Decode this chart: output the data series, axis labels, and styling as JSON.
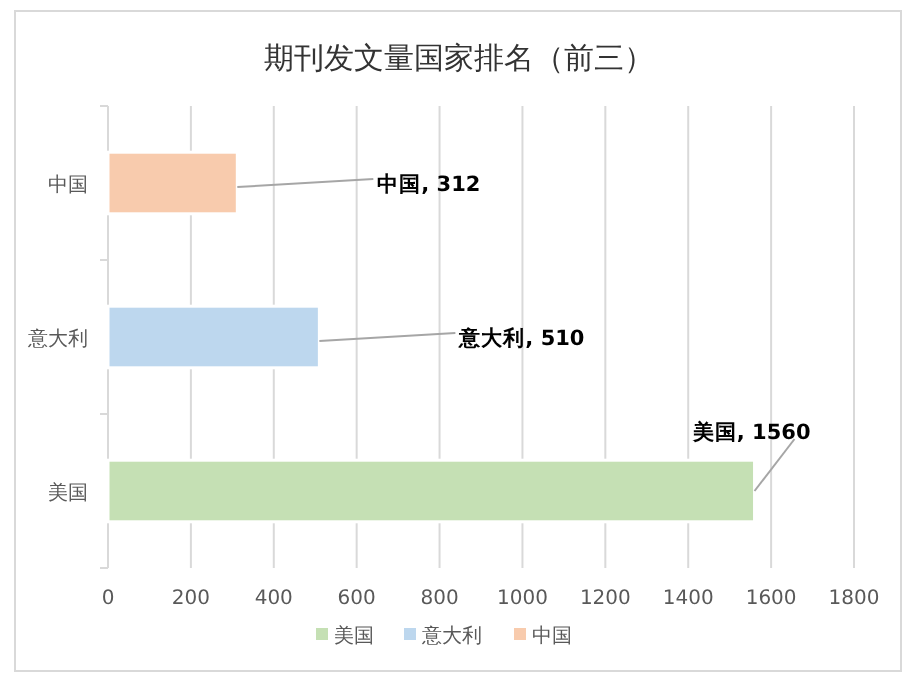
{
  "chart_data": {
    "type": "bar",
    "orientation": "horizontal",
    "stacked": true,
    "title": "期刊发文量国家排名（前三）",
    "categories": [
      "中国",
      "意大利",
      "美国"
    ],
    "series": [
      {
        "name": "美国",
        "color": "#c5e0b4",
        "values": [
          null,
          null,
          1560
        ],
        "value_labels": [
          null,
          null,
          "美国, 1560"
        ]
      },
      {
        "name": "意大利",
        "color": "#bdd7ee",
        "values": [
          null,
          510,
          null
        ],
        "value_labels": [
          null,
          "意大利, 510",
          null
        ]
      },
      {
        "name": "中国",
        "color": "#f8cbad",
        "values": [
          312,
          null,
          null
        ],
        "value_labels": [
          "中国, 312",
          null,
          null
        ]
      }
    ],
    "xlim": [
      0,
      1800
    ],
    "xticks": [
      0,
      200,
      400,
      600,
      800,
      1000,
      1200,
      1400,
      1600,
      1800
    ],
    "grid": "x",
    "legend": "bottom"
  }
}
